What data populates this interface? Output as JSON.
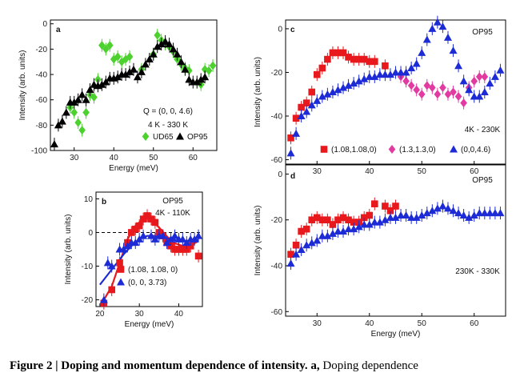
{
  "caption": {
    "figure_label": "Figure 2 | Doping and momentum dependence of intensity.",
    "panel_ref": "a,",
    "text": "Doping dependence"
  },
  "colors": {
    "green": "#4cd12e",
    "black": "#000000",
    "red": "#e8191c",
    "blue": "#1d2bd6",
    "pink": "#e23aa0"
  },
  "chart_data": [
    {
      "panel": "a",
      "type": "scatter",
      "xlabel": "Energy (meV)",
      "ylabel": "Intensity (arb. units)",
      "xlim": [
        24,
        66
      ],
      "ylim": [
        -100,
        3
      ],
      "xticks": [
        30,
        40,
        50,
        60
      ],
      "yticks": [
        0,
        -20,
        -40,
        -60,
        -80,
        -100
      ],
      "annotations": [
        "Q = (0, 0, 4.6)",
        "4 K - 330 K"
      ],
      "series": [
        {
          "name": "UD65",
          "color": "#4cd12e",
          "marker": "diamond",
          "x": [
            29,
            30,
            31,
            32,
            33,
            34,
            35,
            36,
            37,
            38,
            39,
            40,
            41,
            42,
            43,
            44,
            47,
            50,
            51,
            52,
            53,
            54,
            55,
            56,
            57,
            58,
            59,
            62,
            63,
            64,
            65
          ],
          "y": [
            -66,
            -70,
            -78,
            -84,
            -70,
            -56,
            -58,
            -44,
            -17,
            -20,
            -17,
            -28,
            -26,
            -30,
            -28,
            -26,
            -36,
            -24,
            -9,
            -13,
            -16,
            -18,
            -22,
            -28,
            -32,
            -35,
            -37,
            -48,
            -36,
            -37,
            -33
          ]
        },
        {
          "name": "OP95",
          "color": "#000000",
          "marker": "triangle",
          "x": [
            25,
            26,
            27,
            28,
            29,
            30,
            31,
            32,
            33,
            34,
            35,
            36,
            37,
            38,
            39,
            40,
            41,
            42,
            43,
            44,
            45,
            46,
            47,
            48,
            49,
            50,
            51,
            52,
            53,
            54,
            55,
            56,
            57,
            58,
            59,
            60,
            61,
            62,
            63
          ],
          "y": [
            -95,
            -80,
            -77,
            -70,
            -62,
            -62,
            -60,
            -56,
            -60,
            -52,
            -48,
            -49,
            -48,
            -46,
            -43,
            -43,
            -42,
            -40,
            -40,
            -38,
            -36,
            -42,
            -38,
            -32,
            -28,
            -24,
            -18,
            -16,
            -14,
            -16,
            -20,
            -24,
            -30,
            -36,
            -44,
            -46,
            -46,
            -44,
            -42
          ]
        }
      ]
    },
    {
      "panel": "b",
      "type": "scatter",
      "xlabel": "Energy (meV)",
      "ylabel": "Intensity (arb. units)",
      "xlim": [
        19,
        46
      ],
      "ylim": [
        -22,
        12
      ],
      "xticks": [
        20,
        30,
        40
      ],
      "yticks": [
        10,
        0,
        -10,
        -20
      ],
      "annotations": [
        "OP95",
        "4K - 110K"
      ],
      "series": [
        {
          "name": "(1.08, 1.08, 0)",
          "color": "#e8191c",
          "marker": "square",
          "x": [
            21,
            23,
            25,
            27,
            28,
            29,
            30,
            31,
            32,
            33,
            34,
            35,
            36,
            37,
            38,
            39,
            40,
            41,
            42,
            43,
            45
          ],
          "y": [
            -21,
            -17,
            -9,
            -3,
            0,
            1,
            2,
            4,
            5,
            4,
            3,
            0,
            -1,
            -3,
            -4,
            -5,
            -5,
            -5,
            -5,
            -4,
            -7
          ]
        },
        {
          "name": "(0, 0, 3.73)",
          "color": "#1d2bd6",
          "marker": "triangle",
          "x": [
            21,
            22,
            23,
            25,
            26,
            27,
            28,
            29,
            30,
            31,
            33,
            34,
            35,
            36,
            37,
            38,
            39,
            40,
            41,
            42,
            43,
            44,
            45
          ],
          "y": [
            -20,
            -9,
            -10,
            -5,
            -5,
            -4,
            -3,
            -3,
            -2,
            -1,
            -1,
            -2,
            -1,
            -1,
            -3,
            -2,
            -1,
            -2,
            -2,
            -3,
            -2,
            -2,
            -1
          ]
        }
      ],
      "fits": [
        {
          "name": "(1.08, 1.08, 0) fit",
          "color": "#e8191c",
          "x": [
            21,
            23,
            25,
            27,
            29,
            31,
            32,
            33,
            35,
            37,
            39,
            41,
            43,
            44,
            45
          ],
          "y": [
            -20,
            -16,
            -9,
            -2,
            2,
            4,
            4.2,
            3.6,
            1.5,
            -1.2,
            -3.2,
            -4,
            -3.8,
            -3.2,
            -2.5
          ]
        },
        {
          "name": "(0, 0, 3.73) fit",
          "color": "#1d2bd6",
          "x": [
            20,
            22,
            24,
            26,
            28,
            30,
            32,
            34,
            36,
            38,
            40,
            42,
            44,
            45
          ],
          "y": [
            -15.5,
            -12.5,
            -9.5,
            -6.5,
            -4,
            -2,
            -1,
            -1,
            -1.5,
            -2,
            -2.5,
            -2.5,
            -2.3,
            -2.2
          ]
        }
      ]
    },
    {
      "panel": "c",
      "type": "scatter",
      "xlabel": "",
      "ylabel": "Intensity (arb. units)",
      "xlim": [
        24,
        66
      ],
      "ylim": [
        -62,
        4
      ],
      "xticks": [
        30,
        40,
        50,
        60
      ],
      "yticks": [
        0,
        -20,
        -40,
        -60
      ],
      "annotations": [
        "OP95",
        "4K - 230K"
      ],
      "series": [
        {
          "name": "(1.08,1.08,0)",
          "color": "#e8191c",
          "marker": "square",
          "x": [
            25,
            26,
            27,
            28,
            29,
            30,
            31,
            32,
            33,
            34,
            35,
            36,
            37,
            38,
            39,
            40,
            41,
            43
          ],
          "y": [
            -50,
            -41,
            -36,
            -34,
            -29,
            -21,
            -18,
            -14,
            -11,
            -11,
            -11,
            -13,
            -14,
            -14,
            -14,
            -15,
            -15,
            -17
          ]
        },
        {
          "name": "(1.3,1.3,0)",
          "color": "#e23aa0",
          "marker": "diamond",
          "x": [
            46,
            47,
            48,
            49,
            50,
            51,
            52,
            53,
            54,
            55,
            56,
            57,
            58,
            59,
            60,
            61,
            62
          ],
          "y": [
            -22,
            -24,
            -26,
            -28,
            -30,
            -26,
            -27,
            -30,
            -27,
            -30,
            -29,
            -31,
            -34,
            -27,
            -24,
            -22,
            -22
          ]
        },
        {
          "name": "(0,0,4.6)",
          "color": "#1d2bd6",
          "marker": "triangle",
          "x": [
            25,
            26,
            27,
            28,
            29,
            30,
            31,
            32,
            33,
            34,
            35,
            36,
            37,
            38,
            39,
            40,
            41,
            42,
            43,
            44,
            45,
            46,
            47,
            48,
            49,
            50,
            51,
            52,
            53,
            54,
            55,
            56,
            57,
            58,
            59,
            60,
            61,
            62,
            63,
            64,
            65
          ],
          "y": [
            -57,
            -48,
            -40,
            -38,
            -35,
            -33,
            -31,
            -30,
            -29,
            -28,
            -27,
            -26,
            -25,
            -24,
            -23,
            -22,
            -22,
            -21,
            -21,
            -21,
            -20,
            -20,
            -20,
            -18,
            -16,
            -11,
            -5,
            0,
            3,
            1,
            -4,
            -10,
            -17,
            -24,
            -28,
            -31,
            -31,
            -29,
            -25,
            -22,
            -19
          ]
        }
      ]
    },
    {
      "panel": "d",
      "type": "scatter",
      "xlabel": "Energy (meV)",
      "ylabel": "Intensity (arb. units)",
      "xlim": [
        24,
        66
      ],
      "ylim": [
        -62,
        4
      ],
      "xticks": [
        30,
        40,
        50,
        60
      ],
      "yticks": [
        0,
        -20,
        -40,
        -60
      ],
      "annotations": [
        "OP95",
        "230K - 330K"
      ],
      "series": [
        {
          "name": "(1.08,1.08,0)",
          "color": "#e8191c",
          "marker": "square",
          "x": [
            25,
            26,
            27,
            28,
            29,
            30,
            31,
            32,
            33,
            34,
            35,
            36,
            37,
            38,
            39,
            40,
            41,
            43,
            44,
            45
          ],
          "y": [
            -35,
            -31,
            -25,
            -24,
            -20,
            -19,
            -20,
            -20,
            -22,
            -20,
            -19,
            -20,
            -21,
            -21,
            -19,
            -18,
            -13,
            -14,
            -16,
            -14
          ]
        },
        {
          "name": "(0,0,4.6)",
          "color": "#1d2bd6",
          "marker": "triangle",
          "x": [
            25,
            26,
            27,
            28,
            29,
            30,
            31,
            32,
            33,
            34,
            35,
            36,
            37,
            38,
            39,
            40,
            41,
            42,
            43,
            44,
            45,
            46,
            47,
            48,
            49,
            50,
            51,
            52,
            53,
            54,
            55,
            56,
            57,
            58,
            59,
            60,
            61,
            62,
            63,
            64,
            65
          ],
          "y": [
            -39,
            -35,
            -33,
            -31,
            -30,
            -29,
            -27,
            -27,
            -26,
            -25,
            -25,
            -24,
            -24,
            -23,
            -22,
            -22,
            -21,
            -21,
            -20,
            -19,
            -19,
            -18,
            -18,
            -19,
            -19,
            -18,
            -17,
            -16,
            -15,
            -14,
            -15,
            -16,
            -17,
            -18,
            -19,
            -18,
            -17,
            -17,
            -17,
            -17,
            -17
          ]
        }
      ]
    }
  ],
  "legends": {
    "a": [
      {
        "label": "UD65",
        "series": "UD65"
      },
      {
        "label": "OP95",
        "series": "OP95"
      }
    ],
    "b": [
      {
        "label": "(1.08, 1.08, 0)"
      },
      {
        "label": "(0, 0, 3.73)"
      }
    ],
    "c": [
      {
        "label": "(1.08,1.08,0)"
      },
      {
        "label": "(1.3,1.3,0)"
      },
      {
        "label": "(0,0,4.6)"
      }
    ]
  }
}
